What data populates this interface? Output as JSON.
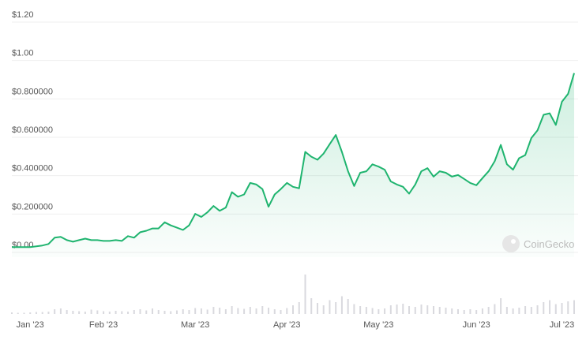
{
  "chart_data": {
    "type": "line",
    "watermark": "CoinGecko",
    "categories": [
      null,
      null,
      null,
      "Jan '23",
      null,
      null,
      null,
      null,
      null,
      null,
      null,
      null,
      null,
      null,
      null,
      "Feb '23",
      null,
      null,
      null,
      null,
      null,
      null,
      null,
      null,
      null,
      null,
      null,
      null,
      null,
      null,
      "Mar '23",
      null,
      null,
      null,
      null,
      null,
      null,
      null,
      null,
      null,
      null,
      null,
      null,
      null,
      null,
      "Apr '23",
      null,
      null,
      null,
      null,
      null,
      null,
      null,
      null,
      null,
      null,
      null,
      null,
      null,
      null,
      "May '23",
      null,
      null,
      null,
      null,
      null,
      null,
      null,
      null,
      null,
      null,
      null,
      null,
      null,
      null,
      null,
      "Jun '23",
      null,
      null,
      null,
      null,
      null,
      null,
      null,
      null,
      null,
      null,
      null,
      null,
      null,
      "Jul '23",
      null,
      null
    ],
    "series": [
      {
        "name": "Price",
        "color": "#1fb46f",
        "values": [
          0.028,
          0.028,
          0.028,
          0.028,
          0.032,
          0.036,
          0.044,
          0.077,
          0.081,
          0.064,
          0.056,
          0.064,
          0.072,
          0.064,
          0.064,
          0.06,
          0.06,
          0.064,
          0.06,
          0.085,
          0.077,
          0.105,
          0.113,
          0.125,
          0.125,
          0.157,
          0.141,
          0.129,
          0.117,
          0.141,
          0.201,
          0.185,
          0.209,
          0.242,
          0.217,
          0.234,
          0.314,
          0.29,
          0.302,
          0.362,
          0.354,
          0.33,
          0.238,
          0.302,
          0.33,
          0.362,
          0.342,
          0.334,
          0.524,
          0.499,
          0.483,
          0.515,
          0.564,
          0.612,
          0.524,
          0.423,
          0.346,
          0.415,
          0.423,
          0.459,
          0.447,
          0.431,
          0.37,
          0.354,
          0.342,
          0.306,
          0.354,
          0.423,
          0.439,
          0.395,
          0.423,
          0.415,
          0.395,
          0.403,
          0.383,
          0.362,
          0.35,
          0.387,
          0.423,
          0.475,
          0.56,
          0.459,
          0.431,
          0.491,
          0.507,
          0.596,
          0.636,
          0.717,
          0.725,
          0.664,
          0.785,
          0.826,
          0.934
        ]
      },
      {
        "name": "Volume",
        "axis": "y2",
        "color": "#d9d9de",
        "values": [
          4,
          3,
          3,
          4,
          5,
          5,
          6,
          12,
          14,
          10,
          8,
          7,
          6,
          11,
          9,
          7,
          6,
          8,
          7,
          6,
          10,
          12,
          9,
          14,
          10,
          8,
          7,
          9,
          12,
          10,
          15,
          14,
          11,
          18,
          16,
          12,
          20,
          15,
          13,
          18,
          14,
          20,
          16,
          12,
          10,
          15,
          22,
          30,
          100,
          40,
          28,
          22,
          35,
          30,
          45,
          38,
          25,
          20,
          18,
          15,
          12,
          14,
          22,
          24,
          26,
          20,
          18,
          24,
          22,
          20,
          18,
          16,
          14,
          12,
          10,
          12,
          10,
          14,
          18,
          25,
          40,
          18,
          14,
          16,
          20,
          18,
          22,
          30,
          35,
          25,
          28,
          32,
          35
        ]
      }
    ],
    "ylim": [
      0,
      1.2
    ],
    "yticks": [
      {
        "value": 0,
        "label": "$0.00"
      },
      {
        "value": 0.2,
        "label": "$0.200000"
      },
      {
        "value": 0.4,
        "label": "$0.400000"
      },
      {
        "value": 0.6,
        "label": "$0.600000"
      },
      {
        "value": 0.8,
        "label": "$0.800000"
      },
      {
        "value": 1.0,
        "label": "$1.00"
      },
      {
        "value": 1.2,
        "label": "$1.20"
      }
    ],
    "y2lim": [
      0,
      100
    ],
    "grid": true
  }
}
